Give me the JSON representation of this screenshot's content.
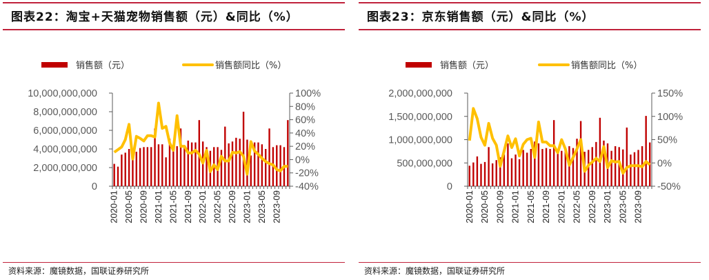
{
  "charts": [
    {
      "title": "图表22：淘宝+天猫宠物销售额（元）&同比（%）",
      "source": "资料来源：魔镜数据，国联证券研究所",
      "legend": {
        "bar": "销售额（元）",
        "line": "销售额同比（%）"
      },
      "left_ticks": [
        "10,000,000,000",
        "8,000,000,000",
        "6,000,000,000",
        "4,000,000,000",
        "2,000,000,000",
        "0"
      ],
      "right_ticks": [
        "100%",
        "80%",
        "60%",
        "40%",
        "20%",
        "0%",
        "-20%",
        "-40%"
      ],
      "x_ticks": [
        "2020-01",
        "2020-05",
        "2020-09",
        "2021-01",
        "2021-05",
        "2021-09",
        "2022-01",
        "2022-05",
        "2022-09",
        "2023-01",
        "2023-05",
        "2023-09"
      ]
    },
    {
      "title": "图表23：京东销售额（元）&同比（%）",
      "source": "资料来源：魔镜数据，国联证券研究所",
      "legend": {
        "bar": "销售额（元）",
        "line": "销售额同比（%）"
      },
      "left_ticks": [
        "2,000,000,000",
        "1,500,000,000",
        "1,000,000,000",
        "500,000,000",
        "0"
      ],
      "right_ticks": [
        "150%",
        "100%",
        "50%",
        "0%",
        "-50%"
      ],
      "x_ticks": [
        "2020-01",
        "2020-05",
        "2020-09",
        "2021-01",
        "2021-05",
        "2021-09",
        "2022-01",
        "2022-05",
        "2022-09",
        "2023-01",
        "2023-05",
        "2023-09"
      ]
    }
  ],
  "colors": {
    "bar": "#c00000",
    "line": "#ffc000",
    "rule": "#c0203a"
  },
  "chart_data": [
    {
      "type": "bar",
      "title": "淘宝+天猫宠物销售额（元）&同比（%）",
      "x_start": "2020-01",
      "months": 48,
      "ylim": [
        0,
        10000000000
      ],
      "y2lim": [
        -40,
        100
      ],
      "series": [
        {
          "name": "销售额（元）",
          "axis": "left",
          "type": "bar",
          "values": [
            2400000000,
            2100000000,
            3400000000,
            3600000000,
            4000000000,
            3700000000,
            3700000000,
            4100000000,
            4200000000,
            4200000000,
            4200000000,
            6200000000,
            4500000000,
            4500000000,
            3100000000,
            5100000000,
            4400000000,
            4300000000,
            6200000000,
            4300000000,
            4900000000,
            4700000000,
            4700000000,
            7100000000,
            4800000000,
            4200000000,
            3800000000,
            4200000000,
            4200000000,
            3900000000,
            6400000000,
            4600000000,
            4800000000,
            5200000000,
            5100000000,
            8000000000,
            5000000000,
            3300000000,
            4700000000,
            4700000000,
            4500000000,
            4000000000,
            6200000000,
            4200000000,
            4400000000,
            4400000000,
            4200000000,
            7100000000
          ]
        },
        {
          "name": "销售额同比（%）",
          "axis": "right",
          "type": "line",
          "values": [
            11,
            15,
            19,
            30,
            53,
            1,
            35,
            32,
            28,
            36,
            36,
            34,
            85,
            47,
            50,
            25,
            14,
            66,
            20,
            20,
            10,
            10,
            14,
            8,
            -5,
            14,
            -18,
            -8,
            -15,
            5,
            -2,
            -2,
            11,
            10,
            12,
            5,
            -22,
            27,
            13,
            8,
            2,
            -3,
            -6,
            -8,
            -15,
            -17,
            -10,
            -10
          ]
        }
      ]
    },
    {
      "type": "bar",
      "title": "京东销售额（元）&同比（%）",
      "x_start": "2020-01",
      "months": 48,
      "ylim": [
        0,
        2000000000
      ],
      "y2lim": [
        -50,
        150
      ],
      "series": [
        {
          "name": "销售额（元）",
          "axis": "left",
          "type": "bar",
          "values": [
            440000000,
            510000000,
            640000000,
            480000000,
            520000000,
            840000000,
            490000000,
            560000000,
            620000000,
            680000000,
            920000000,
            600000000,
            680000000,
            580000000,
            780000000,
            720000000,
            800000000,
            960000000,
            920000000,
            800000000,
            820000000,
            800000000,
            1420000000,
            780000000,
            760000000,
            800000000,
            860000000,
            820000000,
            1020000000,
            1400000000,
            740000000,
            780000000,
            840000000,
            950000000,
            1470000000,
            980000000,
            920000000,
            760000000,
            860000000,
            840000000,
            790000000,
            1260000000,
            680000000,
            730000000,
            780000000,
            860000000,
            1510000000,
            940000000
          ]
        },
        {
          "name": "销售额同比（%）",
          "axis": "right",
          "type": "line",
          "values": [
            48,
            117,
            95,
            55,
            38,
            85,
            53,
            38,
            -7,
            25,
            58,
            33,
            52,
            15,
            40,
            50,
            53,
            12,
            88,
            45,
            45,
            37,
            37,
            22,
            50,
            30,
            -5,
            12,
            30,
            50,
            -18,
            -5,
            2,
            10,
            3,
            35,
            -10,
            5,
            2,
            3,
            -22,
            -10,
            -6,
            -6,
            -6,
            -8,
            3,
            -4
          ]
        }
      ]
    }
  ]
}
